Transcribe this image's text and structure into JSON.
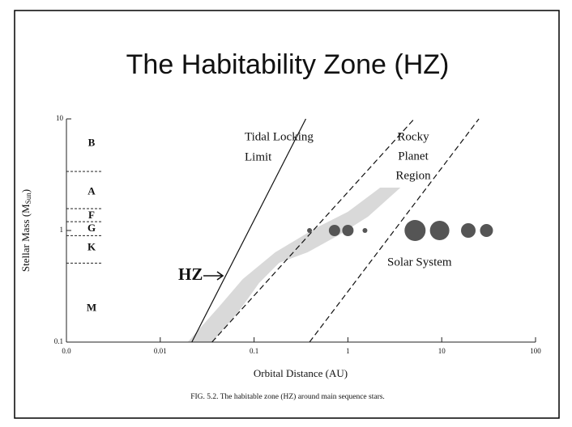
{
  "title": "The Habitability Zone (HZ)",
  "chart_data": {
    "type": "scatter",
    "x_label": "Orbital Distance (AU)",
    "y_label": {
      "main": "Stellar Mass (M",
      "sub": "Sun",
      "end": ")"
    },
    "caption": "FIG. 5.2.   The habitable zone (HZ) around main sequence stars.",
    "log_x": true,
    "log_y": true,
    "xlim": [
      0.001,
      100
    ],
    "ylim": [
      0.1,
      10
    ],
    "xticks": [
      {
        "value": 0.001,
        "label": "0.0"
      },
      0.01,
      0.1,
      1,
      10,
      100
    ],
    "yticks": [
      0.1,
      1,
      10
    ],
    "spectral_classes": {
      "labels": [
        "B",
        "A",
        "F",
        "G",
        "K",
        "M"
      ],
      "label_masses": [
        6,
        2.2,
        1.35,
        1.03,
        0.7,
        0.2
      ],
      "boundaries": [
        3.38,
        1.57,
        1.2,
        0.9,
        0.51
      ]
    },
    "planets": {
      "color": "#555555",
      "x": [
        0.39,
        0.72,
        1.0,
        1.52,
        5.2,
        9.5,
        19.2,
        30
      ],
      "y": [
        1,
        1,
        1,
        1,
        1,
        1,
        1,
        1
      ],
      "sizes": [
        3,
        7,
        7,
        3,
        13,
        12,
        9,
        8
      ]
    },
    "hz_region": {
      "color": "#d9d9d9",
      "x": [
        0.0196,
        0.0418,
        0.0757,
        0.168,
        0.452,
        1.0,
        2.21,
        5.09,
        3.63,
        1.64,
        0.82,
        0.371,
        0.185,
        0.113,
        0.0686,
        0.0356
      ],
      "y": [
        0.1,
        0.205,
        0.367,
        0.637,
        1.05,
        1.47,
        2.42,
        2.42,
        2.42,
        1.33,
        0.92,
        0.637,
        0.513,
        0.338,
        0.188,
        0.1
      ]
    },
    "lines": [
      {
        "name": "Tidal Locking Limit",
        "style": "solid",
        "x": [
          0.0217,
          0.356
        ],
        "y": [
          0.1,
          10
        ]
      },
      {
        "name": "Rocky Planet Region inner",
        "style": "dashed",
        "x": [
          0.0356,
          5.09
        ],
        "y": [
          0.1,
          10
        ]
      },
      {
        "name": "Rocky Planet Region outer",
        "style": "dashed",
        "x": [
          0.39,
          24.9
        ],
        "y": [
          0.1,
          10
        ]
      }
    ],
    "annotations": {
      "tidal": [
        "Tidal Locking",
        "Limit"
      ],
      "rocky": [
        "Rocky",
        "Planet",
        "Region"
      ],
      "solar": "Solar System",
      "hz": "HZ"
    }
  }
}
